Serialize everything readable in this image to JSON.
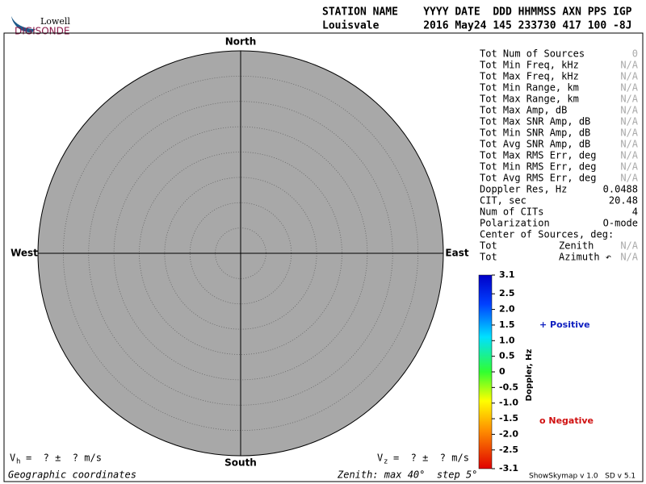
{
  "logo": {
    "line1": "Lowell",
    "line2": "DIGISONDE"
  },
  "header": {
    "row1": "STATION NAME    YYYY DATE  DDD HHMMSS AXN PPS IGP",
    "row2": "Louisvale       2016 May24 145 233730 417 100 -8J"
  },
  "skymap": {
    "north": "North",
    "south": "South",
    "west": "West",
    "east": "East"
  },
  "stats": [
    {
      "label": "Tot Num of Sources",
      "value": "0",
      "value_color": "#aaaaaa"
    },
    {
      "label": "Tot Min Freq, kHz",
      "value": "N/A",
      "value_color": "#aaaaaa"
    },
    {
      "label": "Tot Max Freq, kHz",
      "value": "N/A",
      "value_color": "#aaaaaa"
    },
    {
      "label": "Tot Min Range, km",
      "value": "N/A",
      "value_color": "#aaaaaa"
    },
    {
      "label": "Tot Max Range, km",
      "value": "N/A",
      "value_color": "#aaaaaa"
    },
    {
      "label": "Tot Max Amp, dB",
      "value": "N/A",
      "value_color": "#aaaaaa"
    },
    {
      "label": "Tot Max SNR Amp, dB",
      "value": "N/A",
      "value_color": "#aaaaaa"
    },
    {
      "label": "Tot Min SNR Amp, dB",
      "value": "N/A",
      "value_color": "#aaaaaa"
    },
    {
      "label": "Tot Avg SNR Amp, dB",
      "value": "N/A",
      "value_color": "#aaaaaa"
    },
    {
      "label": "Tot Max RMS Err, deg",
      "value": "N/A",
      "value_color": "#aaaaaa"
    },
    {
      "label": "Tot Min RMS Err, deg",
      "value": "N/A",
      "value_color": "#aaaaaa"
    },
    {
      "label": "Tot Avg RMS Err, deg",
      "value": "N/A",
      "value_color": "#aaaaaa"
    },
    {
      "label": "Doppler Res, Hz",
      "value": "0.0488",
      "value_color": "#000000"
    },
    {
      "label": "CIT, sec",
      "value": "20.48",
      "value_color": "#000000"
    },
    {
      "label": "Num of CITs",
      "value": "4",
      "value_color": "#000000"
    },
    {
      "label": "Polarization",
      "value": "O-mode",
      "value_color": "#000000"
    },
    {
      "label": "Center of Sources, deg:"
    },
    {
      "label": "Tot",
      "sublabel": "Zenith",
      "value": "N/A",
      "value_color": "#aaaaaa"
    },
    {
      "label": "Tot",
      "sublabel": "Azimuth ↶",
      "value": "N/A",
      "value_color": "#aaaaaa"
    }
  ],
  "colorbar": {
    "title": "Doppler, Hz",
    "lim": [
      -3.1,
      3.1
    ],
    "ticks": [
      3.1,
      2.5,
      {
        "value": 2,
        "label": "2.0"
      },
      1.5,
      {
        "value": 1,
        "label": "1.0"
      },
      0.5,
      0,
      -0.5,
      {
        "value": -1,
        "label": "-1.0"
      },
      -1.5,
      {
        "value": -2,
        "label": "-2.0"
      },
      -2.5,
      -3.1
    ]
  },
  "legend": {
    "positive": "+ Positive",
    "negative": "o Negative"
  },
  "footer": {
    "vh_symbol": "V",
    "vh_sub": "h",
    "vh_text": "=  ? ±  ? m/s",
    "vz_symbol": "V",
    "vz_sub": "z",
    "vz_text": "=  ? ±  ? m/s",
    "coords": "Geographic coordinates",
    "zenith": "Zenith: max 40°  step 5°",
    "version": "ShowSkymap v 1.0   SD v 5.1"
  }
}
